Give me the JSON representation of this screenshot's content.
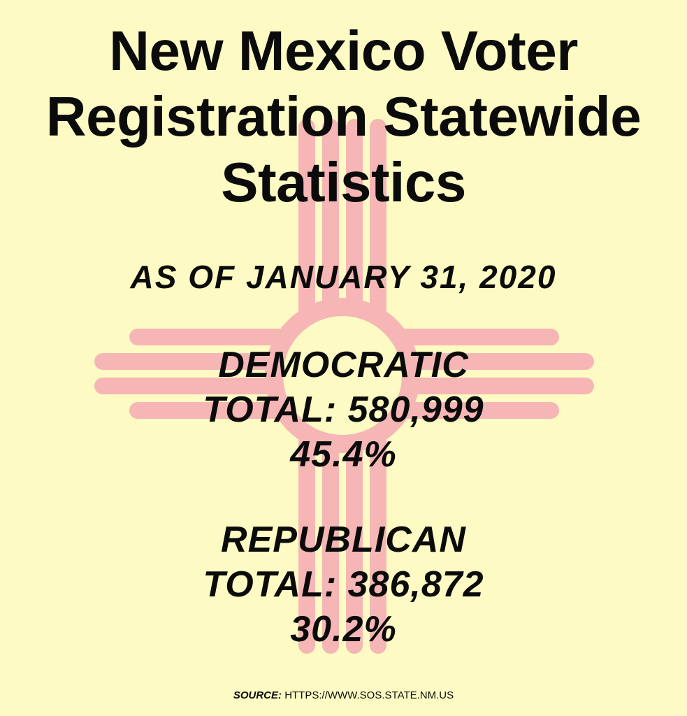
{
  "title": {
    "line1": "New Mexico Voter",
    "line2": "Registration Statewide",
    "line3": "Statistics"
  },
  "as_of": "AS OF JANUARY 31, 2020",
  "parties": [
    {
      "name": "DEMOCRATIC",
      "total": "TOTAL: 580,999",
      "percent": "45.4%"
    },
    {
      "name": "REPUBLICAN",
      "total": "TOTAL: 386,872",
      "percent": "30.2%"
    }
  ],
  "source": {
    "label": "SOURCE:",
    "url": "HTTPS://WWW.SOS.STATE.NM.US"
  },
  "colors": {
    "background": "#fdfbc3",
    "zia_symbol": "#f6b6b6",
    "text": "#0b0b0b"
  },
  "icons": {
    "background_symbol": "zia-sun-symbol-icon"
  }
}
